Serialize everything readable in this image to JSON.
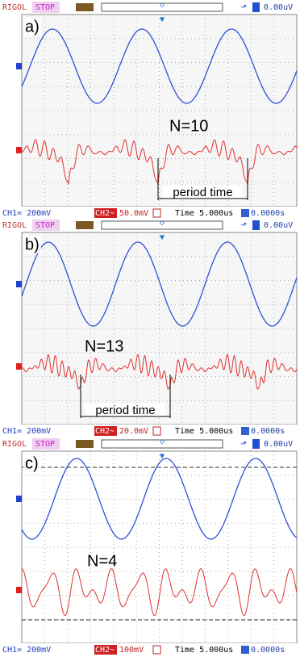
{
  "panels": [
    {
      "header": {
        "brand": "RIGOL",
        "status": "STOP",
        "trigger_level": "0.00uV"
      },
      "label": "a)",
      "annotation": "N=10",
      "period_label": "period time",
      "footer": {
        "ch1": "CH1= 200mV",
        "ch2_name": "CH2~",
        "ch2_scale": "50.0mV",
        "timebase": "Time 5.000us",
        "offset": "0.0000s"
      }
    },
    {
      "header": {
        "brand": "RIGOL",
        "status": "STOP",
        "trigger_level": "0.00uV"
      },
      "label": "b)",
      "annotation": "N=13",
      "period_label": "period time",
      "footer": {
        "ch1": "CH1= 200mV",
        "ch2_name": "CH2~",
        "ch2_scale": "20.0mV",
        "timebase": "Time 5.000us",
        "offset": "0.0000s"
      }
    },
    {
      "header": {
        "brand": "RIGOL",
        "status": "STOP",
        "trigger_level": "0.00uV"
      },
      "label": "c)",
      "annotation": "N=4",
      "footer": {
        "ch1": "CH1= 200mV",
        "ch2_name": "CH2~",
        "ch2_scale": "100mV",
        "timebase": "Time 5.000us",
        "offset": "0.0000s"
      }
    }
  ]
}
